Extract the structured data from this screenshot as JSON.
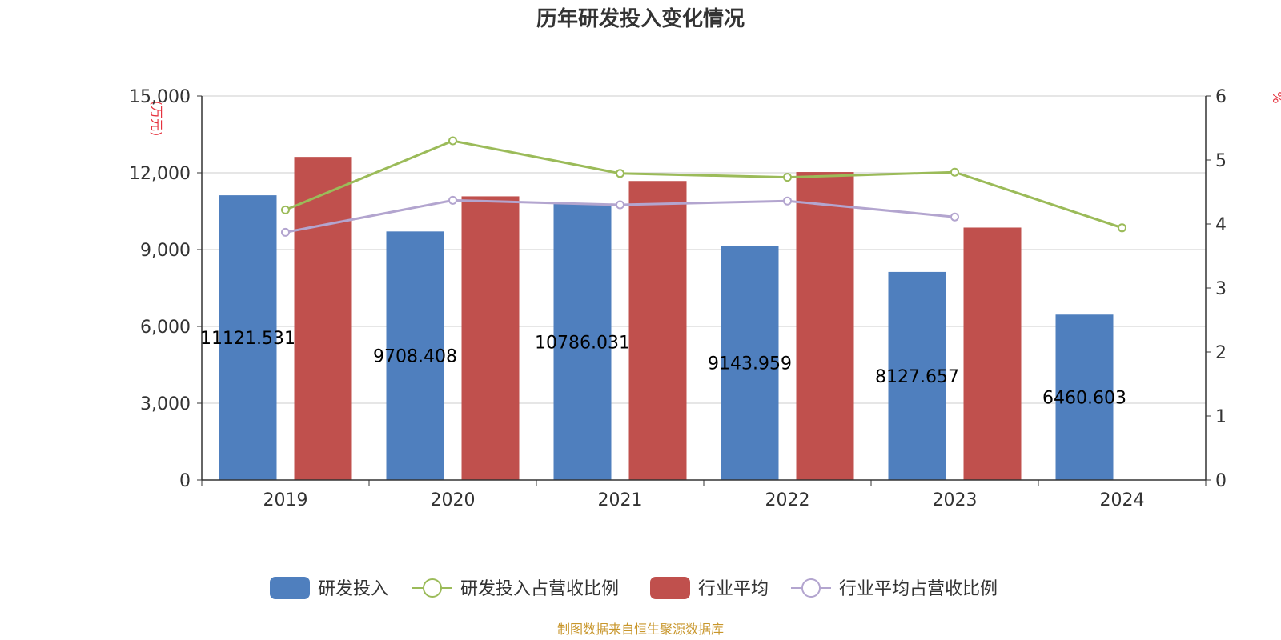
{
  "chart_data": {
    "type": "bar",
    "title": "历年研发投入变化情况",
    "categories": [
      "2019",
      "2020",
      "2021",
      "2022",
      "2023",
      "2024"
    ],
    "y_left": {
      "unit": "(万元)",
      "ylim": [
        0,
        15000
      ],
      "ticks": [
        "0",
        "3,000",
        "6,000",
        "9,000",
        "12,000",
        "15,000"
      ]
    },
    "y_right": {
      "unit": "%",
      "ylim": [
        0,
        6
      ],
      "ticks": [
        "0",
        "1",
        "2",
        "3",
        "4",
        "5",
        "6"
      ]
    },
    "series": [
      {
        "name": "研发投入",
        "type": "bar",
        "axis": "left",
        "color": "#4f7fbe",
        "values": [
          11121.531,
          9708.408,
          10786.031,
          9143.959,
          8127.657,
          6460.603
        ],
        "labels": [
          "11121.531",
          "9708.408",
          "10786.031",
          "9143.959",
          "8127.657",
          "6460.603"
        ]
      },
      {
        "name": "研发投入占营收比例",
        "type": "line",
        "axis": "right",
        "color": "#9bbb59",
        "values": [
          4.22,
          5.3,
          4.79,
          4.73,
          4.81,
          3.94
        ]
      },
      {
        "name": "行业平均",
        "type": "bar",
        "axis": "left",
        "color": "#c0504d",
        "values": [
          12620,
          11080,
          11680,
          12030,
          9860,
          null
        ]
      },
      {
        "name": "行业平均占营收比例",
        "type": "line",
        "axis": "right",
        "color": "#b3a5cf",
        "values": [
          3.87,
          4.37,
          4.3,
          4.36,
          4.11,
          null
        ]
      }
    ],
    "grid": true,
    "legend_position": "bottom"
  },
  "source_note": "制图数据来自恒生聚源数据库"
}
